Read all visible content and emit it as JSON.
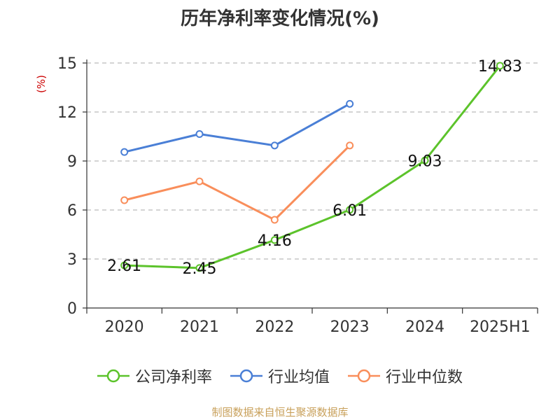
{
  "chart_data": {
    "type": "line",
    "title": "历年净利率变化情况(%)",
    "unit_label": "(%)",
    "categories": [
      "2020",
      "2021",
      "2022",
      "2023",
      "2024",
      "2025H1"
    ],
    "ylim": [
      0,
      15
    ],
    "yticks": [
      0,
      3,
      6,
      9,
      12,
      15
    ],
    "grid": true,
    "legend_position": "bottom",
    "series": [
      {
        "name": "公司净利率",
        "color": "#5cc32b",
        "values": [
          2.61,
          2.45,
          4.16,
          6.01,
          9.03,
          14.83
        ],
        "show_labels": true
      },
      {
        "name": "行业均值",
        "color": "#4a7fd6",
        "values": [
          9.55,
          10.65,
          9.95,
          12.5,
          null,
          null
        ],
        "show_labels": false
      },
      {
        "name": "行业中位数",
        "color": "#f98e5b",
        "values": [
          6.6,
          7.75,
          5.4,
          9.95,
          null,
          null
        ],
        "show_labels": false
      }
    ]
  },
  "footer": {
    "source": "制图数据来自恒生聚源数据库"
  }
}
